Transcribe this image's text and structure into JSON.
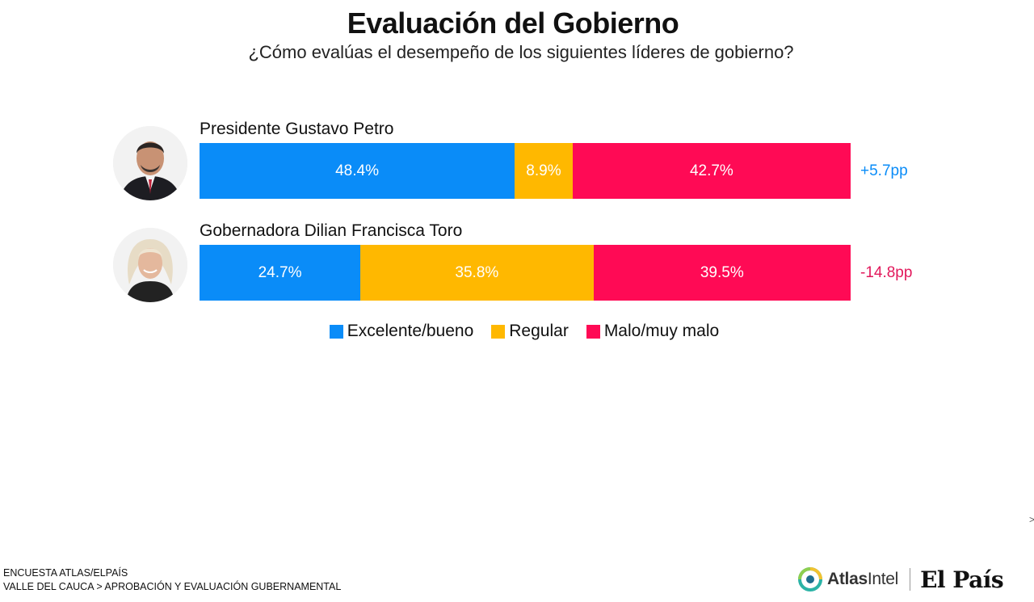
{
  "header": {
    "title": "Evaluación del Gobierno",
    "subtitle": "¿Cómo evalúas el desempeño de los siguientes líderes de gobierno?"
  },
  "chart_data": {
    "type": "bar",
    "orientation": "horizontal",
    "stacked": true,
    "categories": [
      "Presidente Gustavo Petro",
      "Gobernadora Dilian Francisca Toro"
    ],
    "series": [
      {
        "name": "Excelente/bueno",
        "values": [
          48.4,
          24.7
        ],
        "labels": [
          "48.4%",
          "24.7%"
        ],
        "color": "#0A8CF8"
      },
      {
        "name": "Regular",
        "values": [
          8.9,
          35.8
        ],
        "labels": [
          "8.9%",
          "35.8%"
        ],
        "color": "#FFB800"
      },
      {
        "name": "Malo/muy malo",
        "values": [
          42.7,
          39.5
        ],
        "labels": [
          "42.7%",
          "39.5%"
        ],
        "color": "#FF0A55"
      }
    ],
    "deltas": [
      {
        "text": "+5.7pp",
        "color": "#0A8CF8"
      },
      {
        "text": "-14.8pp",
        "color": "#E2185B"
      }
    ],
    "legend_position": "bottom",
    "xlim": [
      0,
      100
    ],
    "grid": false
  },
  "footer": {
    "line1": "ENCUESTA ATLAS/ELPAÍS",
    "line2": "VALLE DEL CAUCA > APROBACIÓN Y EVALUACIÓN GUBERNAMENTAL",
    "logo_atlas_prefix": "Atlas",
    "logo_atlas_suffix": "Intel",
    "logo_elpais": "El País",
    "edge_mark": ">"
  },
  "icons": {
    "avatar_1": "person-portrait-icon",
    "avatar_2": "person-portrait-icon",
    "atlas": "atlasintel-logo-icon"
  }
}
